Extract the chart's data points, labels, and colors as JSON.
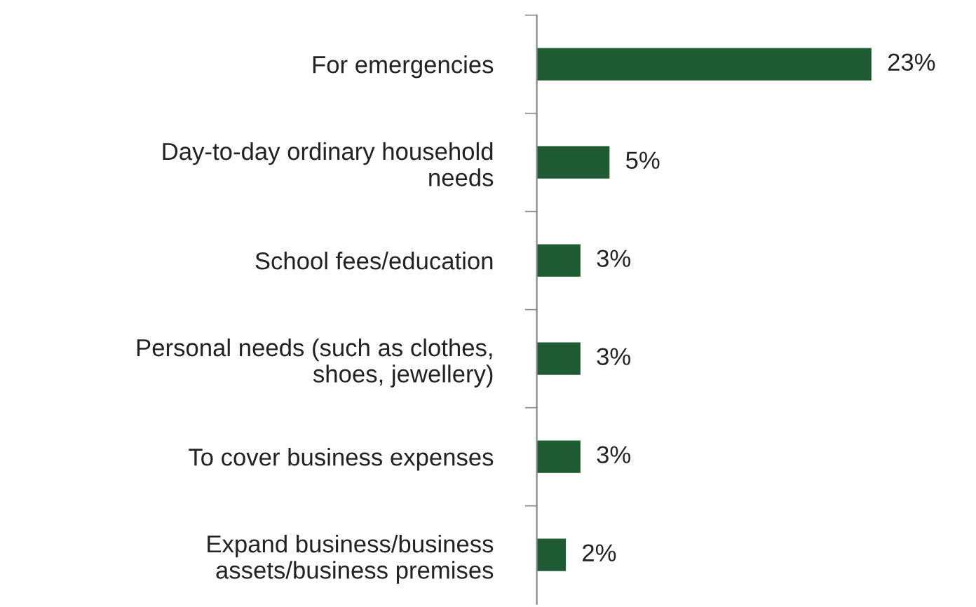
{
  "chart_data": {
    "type": "bar",
    "orientation": "horizontal",
    "categories": [
      "For emergencies",
      "Day-to-day ordinary household\nneeds",
      "School fees/education",
      "Personal needs (such as clothes,\nshoes, jewellery)",
      "To cover business expenses",
      "Expand business/business\nassets/business premises"
    ],
    "values": [
      23,
      5,
      3,
      3,
      3,
      2
    ],
    "value_labels": [
      "23%",
      "5%",
      "3%",
      "3%",
      "3%",
      "2%"
    ],
    "color": "#1e5b32",
    "grid": false,
    "legend": false
  }
}
